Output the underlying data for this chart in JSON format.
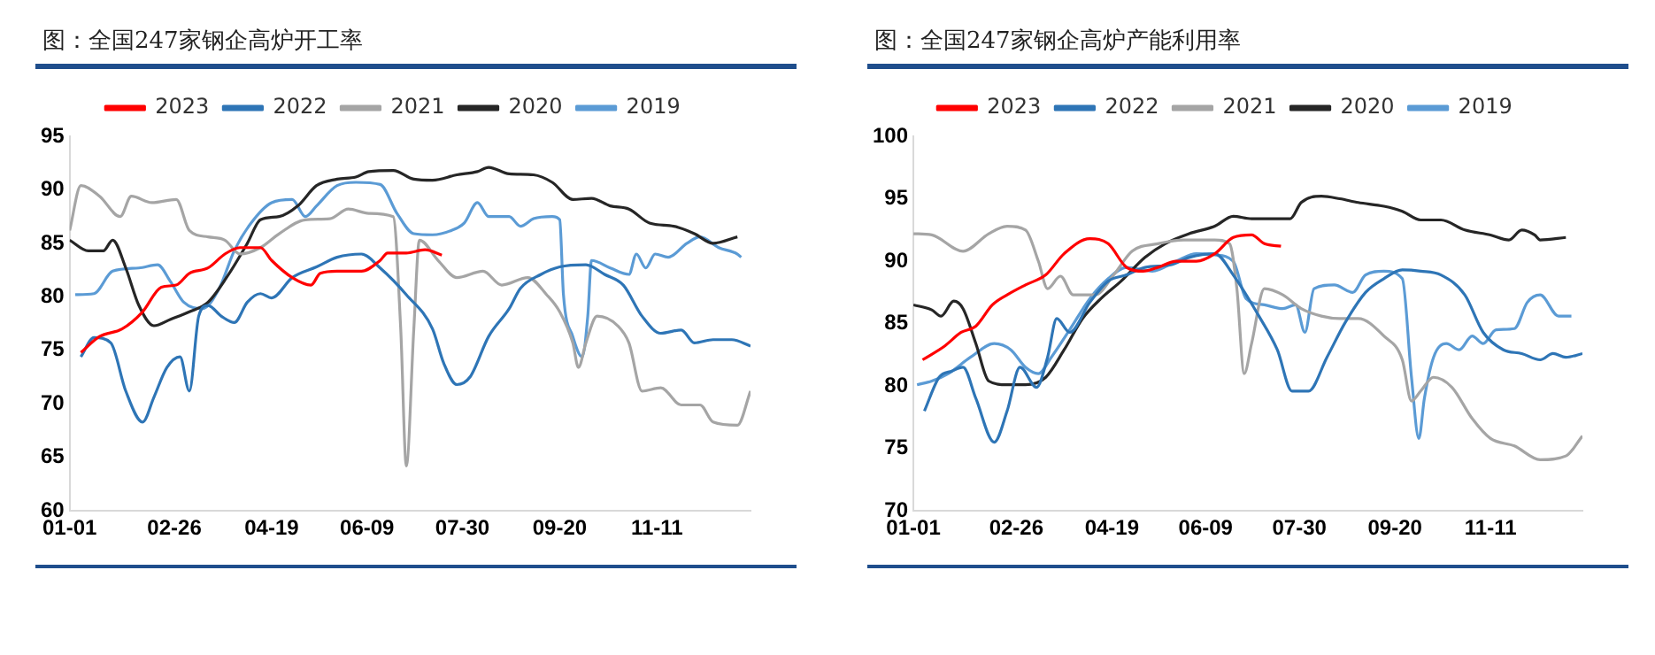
{
  "chart_data": [
    {
      "type": "line",
      "title": "图：全国247家钢企高炉开工率",
      "xlim": [
        "--01-01",
        "--12-31"
      ],
      "xticks": [
        {
          "value": "--01-01",
          "label": "01-01"
        },
        {
          "value": "--02-26",
          "label": "02-26"
        },
        {
          "value": "--04-19",
          "label": "04-19"
        },
        {
          "value": "--06-09",
          "label": "06-09"
        },
        {
          "value": "--07-30",
          "label": "07-30"
        },
        {
          "value": "--09-20",
          "label": "09-20"
        },
        {
          "value": "--11-11",
          "label": "11-11"
        }
      ],
      "ylim": [
        60,
        95
      ],
      "yticks": [
        60,
        65,
        70,
        75,
        80,
        85,
        90,
        95
      ],
      "grid": false,
      "legend": "top",
      "marker": "none",
      "series": [
        {
          "name": "2023",
          "color": "#ff0000",
          "x": [
            "--01-07",
            "--01-17",
            "--01-29",
            "--02-09",
            "--02-19",
            "--02-27",
            "--03-06",
            "--03-16",
            "--03-25",
            "--04-02",
            "--04-13",
            "--04-19",
            "--04-30",
            "--05-10",
            "--05-15",
            "--05-24",
            "--06-06",
            "--06-16",
            "--06-20",
            "--06-30",
            "--07-10",
            "--07-19"
          ],
          "values": [
            74.8,
            76.3,
            77,
            78.6,
            80.9,
            81.1,
            82.2,
            82.7,
            84,
            84.6,
            84.6,
            83.4,
            81.8,
            81.1,
            82.2,
            82.4,
            82.4,
            83.4,
            84.1,
            84.1,
            84.4,
            83.9
          ]
        },
        {
          "name": "2022",
          "color": "#2e75b6",
          "x": [
            "--01-07",
            "--01-14",
            "--01-23",
            "--01-31",
            "--02-09",
            "--02-15",
            "--02-22",
            "--03-01",
            "--03-06",
            "--03-11",
            "--03-16",
            "--03-23",
            "--03-30",
            "--04-06",
            "--04-13",
            "--04-19",
            "--04-30",
            "--05-13",
            "--05-24",
            "--06-06",
            "--06-16",
            "--06-30",
            "--07-14",
            "--07-20",
            "--07-27",
            "--08-03",
            "--08-13",
            "--08-24",
            "--08-30",
            "--09-10",
            "--09-20",
            "--10-04",
            "--10-14",
            "--10-24",
            "--11-03",
            "--11-13",
            "--11-24",
            "--12-01",
            "--12-11",
            "--12-21",
            "--12-31"
          ],
          "values": [
            74.4,
            76.2,
            75.7,
            71.2,
            68.3,
            70.6,
            73.4,
            74.4,
            71.2,
            78.2,
            79.2,
            78.2,
            77.6,
            79.5,
            80.3,
            79.9,
            81.8,
            82.8,
            83.7,
            84,
            82.7,
            80.2,
            77,
            73.8,
            71.8,
            72.5,
            76.3,
            78.9,
            80.8,
            82.1,
            82.8,
            83,
            82.1,
            81.1,
            78.2,
            76.6,
            76.9,
            75.7,
            76,
            76,
            75.4
          ]
        },
        {
          "name": "2021",
          "color": "#a5a5a5",
          "x": [
            "--01-01",
            "--01-07",
            "--01-17",
            "--01-28",
            "--02-03",
            "--02-14",
            "--02-27",
            "--03-06",
            "--03-16",
            "--03-25",
            "--04-02",
            "--04-13",
            "--04-23",
            "--05-07",
            "--05-20",
            "--05-30",
            "--06-10",
            "--06-23",
            "--06-27",
            "--06-30",
            "--07-04",
            "--07-07",
            "--07-17",
            "--07-27",
            "--08-10",
            "--08-20",
            "--09-03",
            "--09-13",
            "--09-20",
            "--09-27",
            "--09-30",
            "--10-04",
            "--10-10",
            "--10-21",
            "--10-27",
            "--11-03",
            "--11-13",
            "--11-24",
            "--12-04",
            "--12-11",
            "--12-24",
            "--12-31"
          ],
          "values": [
            86.2,
            90.4,
            89.4,
            87.5,
            89.4,
            88.8,
            89.1,
            86.2,
            85.6,
            85.3,
            84,
            84.6,
            85.9,
            87.2,
            87.3,
            88.2,
            87.8,
            87.5,
            77,
            64.2,
            77,
            85.3,
            83.4,
            81.8,
            82.4,
            81.1,
            81.8,
            80.2,
            78.6,
            75.7,
            73.4,
            75.7,
            78.2,
            77.3,
            75.7,
            71.2,
            71.5,
            69.9,
            69.9,
            68.3,
            68,
            71.2
          ]
        },
        {
          "name": "2020",
          "color": "#262626",
          "x": [
            "--01-01",
            "--01-11",
            "--01-19",
            "--01-24",
            "--01-31",
            "--02-07",
            "--02-15",
            "--02-24",
            "--03-06",
            "--03-16",
            "--03-27",
            "--04-06",
            "--04-13",
            "--04-23",
            "--05-03",
            "--05-13",
            "--05-24",
            "--06-03",
            "--06-10",
            "--06-23",
            "--07-04",
            "--07-14",
            "--07-27",
            "--08-07",
            "--08-13",
            "--08-24",
            "--09-06",
            "--09-16",
            "--09-27",
            "--10-07",
            "--10-17",
            "--10-27",
            "--11-07",
            "--11-20",
            "--12-01",
            "--12-11",
            "--12-24"
          ],
          "values": [
            85.3,
            84.3,
            84.3,
            85.3,
            82.7,
            79.2,
            77.3,
            77.9,
            78.6,
            79.5,
            82.1,
            85,
            87.2,
            87.5,
            88.5,
            90.4,
            91,
            91.2,
            91.7,
            91.8,
            91,
            90.9,
            91.4,
            91.7,
            92.1,
            91.5,
            91.4,
            90.7,
            89.1,
            89.2,
            88.5,
            88.2,
            86.9,
            86.6,
            85.9,
            85,
            85.6
          ]
        },
        {
          "name": "2019",
          "color": "#5b9bd5",
          "x": [
            "--01-04",
            "--01-14",
            "--01-24",
            "--02-07",
            "--02-17",
            "--02-24",
            "--03-03",
            "--03-13",
            "--03-22",
            "--03-30",
            "--04-08",
            "--04-19",
            "--04-30",
            "--05-07",
            "--05-13",
            "--05-24",
            "--06-03",
            "--06-16",
            "--06-25",
            "--07-04",
            "--07-14",
            "--07-24",
            "--07-31",
            "--08-07",
            "--08-13",
            "--08-24",
            "--08-30",
            "--09-06",
            "--09-16",
            "--09-20",
            "--09-22",
            "--09-27",
            "--10-02",
            "--10-05",
            "--10-07",
            "--10-17",
            "--10-27",
            "--10-31",
            "--11-05",
            "--11-10",
            "--11-17",
            "--11-27",
            "--12-04",
            "--12-14",
            "--12-24",
            "--12-26"
          ],
          "values": [
            80.2,
            80.3,
            82.4,
            82.7,
            83,
            81.4,
            79.5,
            78.9,
            80.8,
            84.3,
            86.9,
            88.8,
            89.1,
            87.5,
            88.5,
            90.4,
            90.7,
            90.5,
            87.8,
            85.9,
            85.8,
            86.2,
            86.9,
            88.8,
            87.5,
            87.5,
            86.6,
            87.3,
            87.5,
            87.2,
            80.2,
            76.3,
            74.4,
            78.2,
            83.4,
            82.7,
            82.1,
            84,
            82.7,
            84,
            83.7,
            85,
            85.6,
            84.6,
            84,
            83.7
          ]
        }
      ]
    },
    {
      "type": "line",
      "title": "图：全国247家钢企高炉产能利用率",
      "xlim": [
        "--01-01",
        "--12-31"
      ],
      "xticks": [
        {
          "value": "--01-01",
          "label": "01-01"
        },
        {
          "value": "--02-26",
          "label": "02-26"
        },
        {
          "value": "--04-19",
          "label": "04-19"
        },
        {
          "value": "--06-09",
          "label": "06-09"
        },
        {
          "value": "--07-30",
          "label": "07-30"
        },
        {
          "value": "--09-20",
          "label": "09-20"
        },
        {
          "value": "--11-11",
          "label": "11-11"
        }
      ],
      "ylim": [
        70,
        100
      ],
      "yticks": [
        70,
        75,
        80,
        85,
        90,
        95,
        100
      ],
      "grid": false,
      "legend": "top",
      "marker": "none",
      "series": [
        {
          "name": "2023",
          "color": "#ff0000",
          "x": [
            "--01-06",
            "--01-18",
            "--01-27",
            "--02-04",
            "--02-13",
            "--02-21",
            "--03-03",
            "--03-14",
            "--03-24",
            "--04-07",
            "--04-17",
            "--04-27",
            "--05-06",
            "--05-14",
            "--05-24",
            "--06-04",
            "--06-14",
            "--06-24",
            "--07-04",
            "--07-11",
            "--07-20"
          ],
          "values": [
            82.1,
            83.2,
            84.3,
            84.8,
            86.5,
            87.3,
            88.1,
            88.9,
            90.6,
            91.8,
            91.4,
            89.5,
            89.2,
            89.5,
            90,
            90,
            90.6,
            91.9,
            92.1,
            91.4,
            91.2
          ]
        },
        {
          "name": "2022",
          "color": "#2e75b6",
          "x": [
            "--01-07",
            "--01-15",
            "--01-22",
            "--01-28",
            "--02-04",
            "--02-14",
            "--02-21",
            "--02-28",
            "--03-09",
            "--03-15",
            "--03-20",
            "--03-27",
            "--04-07",
            "--04-17",
            "--04-27",
            "--05-07",
            "--05-21",
            "--05-31",
            "--06-14",
            "--06-24",
            "--07-08",
            "--07-18",
            "--07-26",
            "--08-04",
            "--08-14",
            "--08-24",
            "--09-04",
            "--09-14",
            "--09-24",
            "--10-04",
            "--10-15",
            "--10-28",
            "--11-07",
            "--11-18",
            "--11-28",
            "--12-08",
            "--12-15",
            "--12-22",
            "--12-31"
          ],
          "values": [
            78,
            80.7,
            81.2,
            81.5,
            79,
            75.5,
            78,
            81.5,
            79.9,
            82.3,
            85.4,
            84.3,
            86.7,
            88.4,
            88.9,
            89.5,
            89.7,
            90.3,
            90.6,
            88.9,
            85.6,
            82.9,
            79.6,
            79.6,
            82.3,
            85.1,
            87.5,
            88.6,
            89.3,
            89.2,
            88.9,
            87.3,
            84.3,
            82.9,
            82.6,
            82.1,
            82.6,
            82.3,
            82.6
          ]
        },
        {
          "name": "2021",
          "color": "#a5a5a5",
          "x": [
            "--01-01",
            "--01-11",
            "--01-28",
            "--02-11",
            "--02-21",
            "--03-03",
            "--03-10",
            "--03-15",
            "--03-22",
            "--03-29",
            "--04-10",
            "--04-20",
            "--04-30",
            "--05-14",
            "--05-28",
            "--06-14",
            "--06-22",
            "--06-26",
            "--06-30",
            "--07-04",
            "--07-11",
            "--07-21",
            "--07-31",
            "--08-11",
            "--08-21",
            "--08-31",
            "--09-14",
            "--09-24",
            "--09-29",
            "--10-04",
            "--10-11",
            "--10-21",
            "--11-01",
            "--11-11",
            "--11-24",
            "--12-08",
            "--12-22",
            "--12-31"
          ],
          "values": [
            92.2,
            92.1,
            90.8,
            92.2,
            92.8,
            92.5,
            90,
            87.8,
            88.8,
            87.3,
            87.3,
            88.9,
            90.8,
            91.4,
            91.7,
            91.7,
            91.4,
            87.8,
            81,
            83.4,
            87.8,
            87.3,
            86.2,
            85.6,
            85.4,
            85.4,
            84,
            82.1,
            78.8,
            79.6,
            80.7,
            79.9,
            77.4,
            75.8,
            75.2,
            74.1,
            74.4,
            76
          ]
        },
        {
          "name": "2020",
          "color": "#262626",
          "x": [
            "--01-01",
            "--01-11",
            "--01-16",
            "--01-23",
            "--01-28",
            "--02-04",
            "--02-11",
            "--02-21",
            "--03-03",
            "--03-14",
            "--03-24",
            "--04-03",
            "--04-13",
            "--04-24",
            "--05-07",
            "--05-18",
            "--05-31",
            "--06-14",
            "--06-24",
            "--07-04",
            "--07-18",
            "--07-25",
            "--07-31",
            "--08-11",
            "--08-21",
            "--08-31",
            "--09-14",
            "--09-24",
            "--10-04",
            "--10-15",
            "--10-28",
            "--11-11",
            "--11-21",
            "--11-28",
            "--12-05",
            "--12-08",
            "--12-22"
          ],
          "values": [
            86.5,
            86.1,
            85.6,
            86.8,
            86.2,
            83.4,
            80.4,
            80.1,
            80.1,
            80.7,
            82.9,
            85.4,
            87,
            88.4,
            90.3,
            91.4,
            92.2,
            92.8,
            93.6,
            93.4,
            93.4,
            93.4,
            94.7,
            95.2,
            95,
            94.7,
            94.4,
            94,
            93.3,
            93.3,
            92.5,
            92.1,
            91.7,
            92.5,
            92.1,
            91.7,
            91.9
          ]
        },
        {
          "name": "2019",
          "color": "#5b9bd5",
          "x": [
            "--01-03",
            "--01-11",
            "--01-20",
            "--02-01",
            "--02-14",
            "--02-23",
            "--03-03",
            "--03-10",
            "--03-17",
            "--03-27",
            "--04-07",
            "--04-17",
            "--04-27",
            "--05-11",
            "--05-24",
            "--06-04",
            "--06-14",
            "--06-24",
            "--07-01",
            "--07-11",
            "--07-21",
            "--07-28",
            "--08-02",
            "--08-07",
            "--08-18",
            "--08-28",
            "--09-04",
            "--09-14",
            "--09-24",
            "--09-29",
            "--10-03",
            "--10-06",
            "--10-11",
            "--10-18",
            "--10-25",
            "--11-01",
            "--11-07",
            "--11-14",
            "--11-24",
            "--12-01",
            "--12-08",
            "--12-18",
            "--12-25"
          ],
          "values": [
            80.1,
            80.4,
            81,
            82.3,
            83.4,
            82.9,
            81.5,
            81,
            82.3,
            84.5,
            87,
            88.6,
            89.5,
            89.2,
            90,
            90.6,
            90.5,
            90,
            87,
            86.5,
            86.2,
            86.5,
            84.3,
            87.8,
            88.1,
            87.5,
            88.9,
            89.2,
            88.6,
            80.7,
            75.8,
            79,
            82.3,
            83.4,
            82.9,
            84,
            83.4,
            84.5,
            84.6,
            86.7,
            87.3,
            85.6,
            85.6
          ]
        }
      ]
    }
  ]
}
